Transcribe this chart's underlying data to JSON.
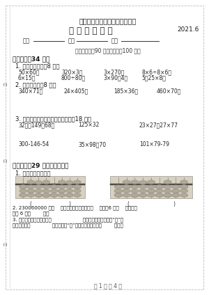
{
  "title1": "义务教育教科书数学四年级下册",
  "title2": "期 末 参 考 试 卷",
  "year": "2021.6",
  "class_label": "班级",
  "name_label": "姓名",
  "score_label": "成绩",
  "time_note": "（考试时间：90 分钟，总分：100 分）",
  "section1": "一、计算（34 分）",
  "sub1_1": "1. 直接写出得数（8 分）",
  "row1": [
    "50×60＝",
    "320×3＝",
    "3×270＝",
    "8×6÷8×6＝"
  ],
  "row2": [
    "6×15＝",
    "800÷80＝",
    "3×90＋4＝",
    "5＋25×8＝"
  ],
  "sub1_2": "2. 用竖式计算（8 分）",
  "row3": [
    "340×71＝",
    "24×405＝",
    "185×36＝",
    "460×70＝"
  ],
  "sub1_3": "3. 下面各题，怎样算简便就怎样算（18 分）",
  "row4": [
    "32＋（149＋68）",
    "125×32",
    "23×27＋27×77"
  ],
  "row5": [
    "300-146-54",
    "35×98＋70",
    "101×79-79"
  ],
  "section2": "二、填空（29 分，一空一分）",
  "sub2_1": "1. 写出算盘上的数。",
  "sub2_2": "2. 230060000 是（    ）位数，它的最高位是（    ）位，6 在（    ）位上，",
  "sub2_2b": "表示 6 个（        ）。",
  "sub2_3": "3. 九亿六千零四十万写作（                    ），把这个数改写成用“万”作",
  "sub2_3b": "单位的数是（              ）万，省略“亿”后面的尾数大约是（        ）亿。",
  "footer": "第 1 页 共 4 页",
  "bg_color": "#ffffff",
  "text_color": "#333333",
  "border_color": "#bbbbbb"
}
